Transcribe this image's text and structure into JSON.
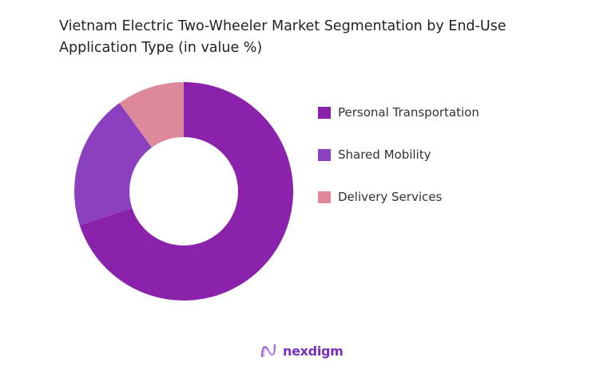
{
  "chart_data": {
    "type": "pie",
    "donut": true,
    "title": "Vietnam Electric Two-Wheeler Market Segmentation by End-Use Application Type (in value %)",
    "categories": [
      "Personal Transportation",
      "Shared Mobility",
      "Delivery Services"
    ],
    "values": [
      70,
      20,
      10
    ],
    "colors": [
      "#8B22AC",
      "#8A40BF",
      "#DE889B"
    ],
    "legend_position": "right"
  },
  "branding": {
    "logo_text": "nexdigm",
    "logo_icon": "nexdigm-wave-icon"
  }
}
